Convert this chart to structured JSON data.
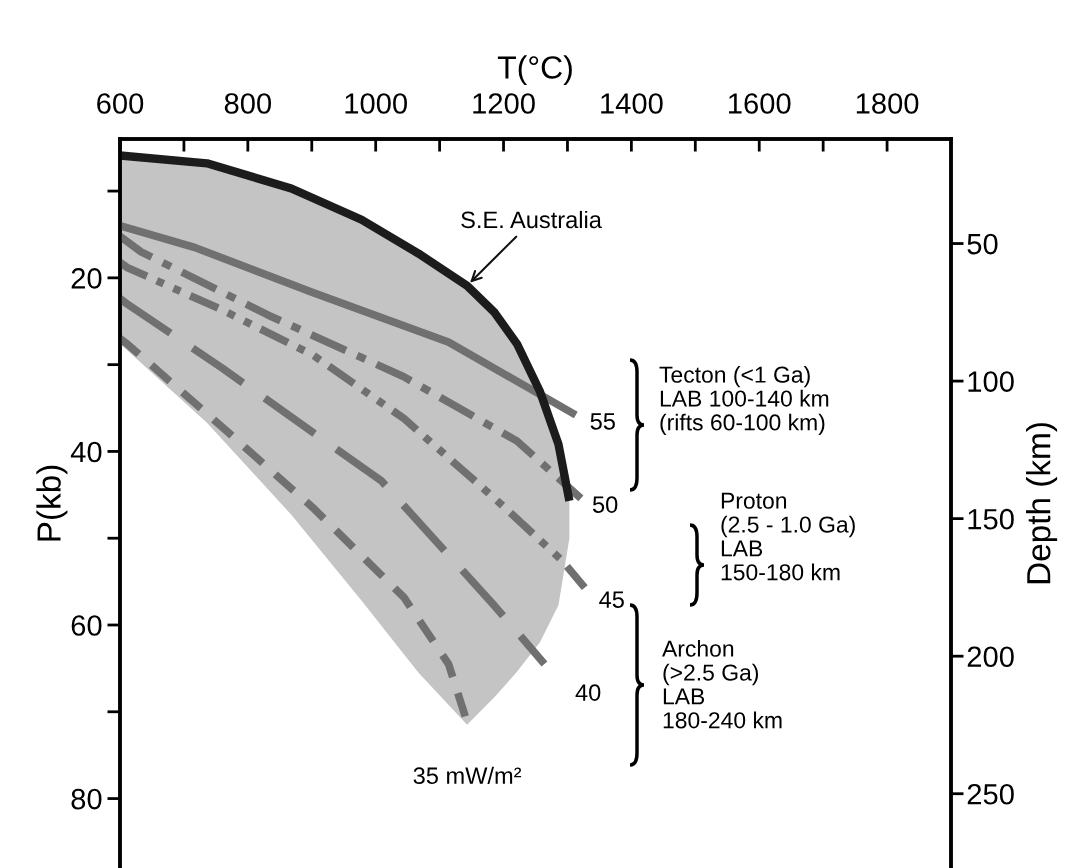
{
  "chart_data": {
    "type": "line",
    "xlabel": "T(°C)",
    "ylabel": "P(kb)",
    "y2label": "Depth (km)",
    "xlim": [
      600,
      1900
    ],
    "xticks": [
      600,
      {
        "value": 700,
        "label": null
      },
      800,
      {
        "value": 900,
        "label": null
      },
      1000,
      {
        "value": 1100,
        "label": null
      },
      1200,
      {
        "value": 1300,
        "label": null
      },
      1400,
      {
        "value": 1500,
        "label": null
      },
      1600,
      {
        "value": 1700,
        "label": null
      },
      1800
    ],
    "ylim": [
      88,
      4
    ],
    "yticks": [
      {
        "value": 10,
        "label": null
      },
      20,
      {
        "value": 30,
        "label": null
      },
      40,
      {
        "value": 50,
        "label": null
      },
      60,
      {
        "value": 70,
        "label": null
      },
      80
    ],
    "y2lim": [
      277,
      12
    ],
    "y2ticks": [
      50,
      100,
      150,
      200,
      250
    ],
    "grid": false,
    "legend": false,
    "marker": "none",
    "series": [
      {
        "name": "S.E. Australia",
        "color": "#1c1c1c",
        "line_style": "solid",
        "x": [
          600,
          736,
          868,
          978,
          1067,
          1143,
          1186,
          1221,
          1257,
          1286,
          1303
        ],
        "values": [
          5.9,
          6.8,
          9.7,
          13.3,
          17.2,
          20.9,
          24.0,
          27.6,
          33.1,
          39.2,
          45.7
        ],
        "lower": [
          27.6,
          36.7,
          47.3,
          57.2,
          65.5,
          71.5,
          68.3,
          65.4,
          62.0,
          57.7,
          50.0
        ],
        "upper": [
          5.9,
          6.8,
          9.7,
          13.3,
          17.2,
          20.9,
          24.0,
          27.6,
          33.1,
          39.2,
          45.7
        ]
      },
      {
        "name": "55",
        "color": "#707070",
        "line_style": "solid",
        "x": [
          600,
          717,
          902,
          1114,
          1313
        ],
        "values": [
          14.0,
          16.5,
          21.7,
          27.4,
          35.8
        ]
      },
      {
        "name": "50",
        "color": "#707070",
        "line_style": "dashdot",
        "x": [
          600,
          633,
          832,
          1044,
          1221,
          1321
        ],
        "values": [
          15.2,
          17.0,
          24.3,
          31.4,
          38.8,
          45.4
        ]
      },
      {
        "name": "45",
        "color": "#707070",
        "line_style": "dashdotdot",
        "x": [
          600,
          611,
          760,
          902,
          1044,
          1186,
          1292,
          1327
        ],
        "values": [
          18.2,
          18.8,
          23.7,
          28.9,
          36.2,
          45.4,
          52.6,
          55.7
        ]
      },
      {
        "name": "40",
        "color": "#707070",
        "line_style": "longdash",
        "x": [
          600,
          611,
          760,
          1009,
          1186,
          1264
        ],
        "values": [
          22.4,
          23.0,
          30.4,
          43.4,
          57.8,
          64.5
        ]
      },
      {
        "name": "35 mW/m²",
        "color": "#707070",
        "line_style": "dashed",
        "x": [
          600,
          611,
          760,
          902,
          1044,
          1114,
          1143
        ],
        "values": [
          27.0,
          27.6,
          37.2,
          46.5,
          56.8,
          64.5,
          71.2
        ]
      }
    ],
    "annotations": [
      "Tecton (<1 Ga)\nLAB 100-140 km\n(rifts 60-100 km)",
      "Proton\n(2.5 - 1.0 Ga)\nLAB\n150-180 km",
      "Archon\n(>2.5 Ga)\nLAB\n180-240 km"
    ]
  }
}
